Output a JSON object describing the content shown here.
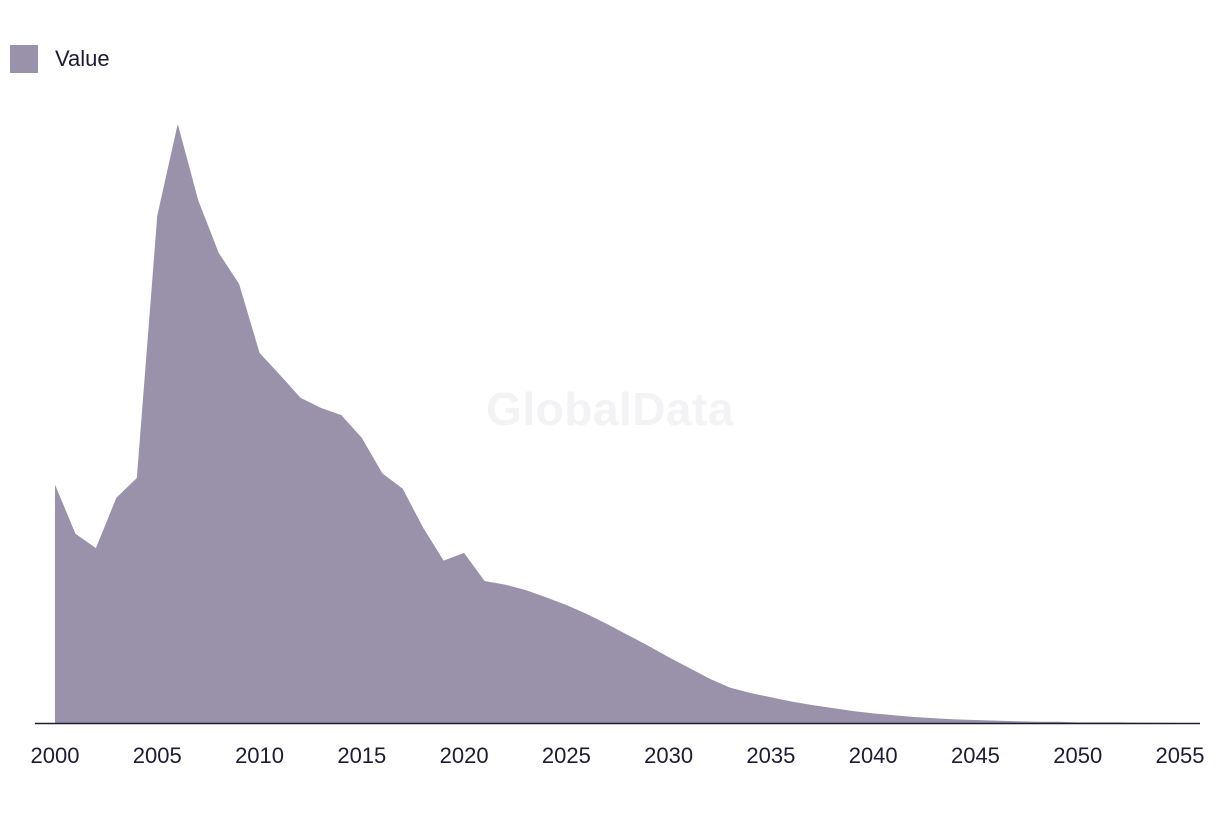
{
  "watermark": "GlobalData",
  "chart_data": {
    "type": "area",
    "title": "",
    "xlabel": "",
    "ylabel": "",
    "legend": {
      "placement": "top-left",
      "entries": [
        "Value"
      ]
    },
    "grid": false,
    "color": "#9a91aa",
    "xlim": [
      2000,
      2055
    ],
    "ylim": [
      0,
      100
    ],
    "x_ticks": [
      "2000",
      "2005",
      "2010",
      "2015",
      "2020",
      "2025",
      "2030",
      "2035",
      "2040",
      "2045",
      "2050",
      "2055"
    ],
    "series": [
      {
        "name": "Value",
        "x": [
          2000,
          2001,
          2002,
          2003,
          2004,
          2005,
          2006,
          2007,
          2008,
          2009,
          2010,
          2011,
          2012,
          2013,
          2014,
          2015,
          2016,
          2017,
          2018,
          2019,
          2020,
          2021,
          2022,
          2023,
          2024,
          2025,
          2026,
          2027,
          2028,
          2029,
          2030,
          2031,
          2032,
          2033,
          2034,
          2035,
          2036,
          2037,
          2038,
          2039,
          2040,
          2041,
          2042,
          2043,
          2044,
          2045,
          2046,
          2047,
          2048,
          2049,
          2050,
          2051,
          2052,
          2053,
          2054,
          2055
        ],
        "values": [
          39.8,
          31.6,
          29.2,
          37.6,
          40.9,
          84.7,
          100.0,
          87.3,
          78.5,
          73.3,
          61.8,
          58.1,
          54.3,
          52.6,
          51.4,
          47.6,
          41.7,
          39.1,
          32.6,
          27.1,
          28.4,
          23.7,
          23.1,
          22.2,
          21.0,
          19.7,
          18.2,
          16.5,
          14.7,
          12.9,
          11.0,
          9.2,
          7.4,
          5.9,
          5.0,
          4.3,
          3.6,
          3.0,
          2.5,
          2.0,
          1.6,
          1.3,
          1.0,
          0.8,
          0.6,
          0.5,
          0.4,
          0.3,
          0.2,
          0.2,
          0.1,
          0.1,
          0.1,
          0.05,
          0.02,
          0.0
        ]
      }
    ]
  }
}
